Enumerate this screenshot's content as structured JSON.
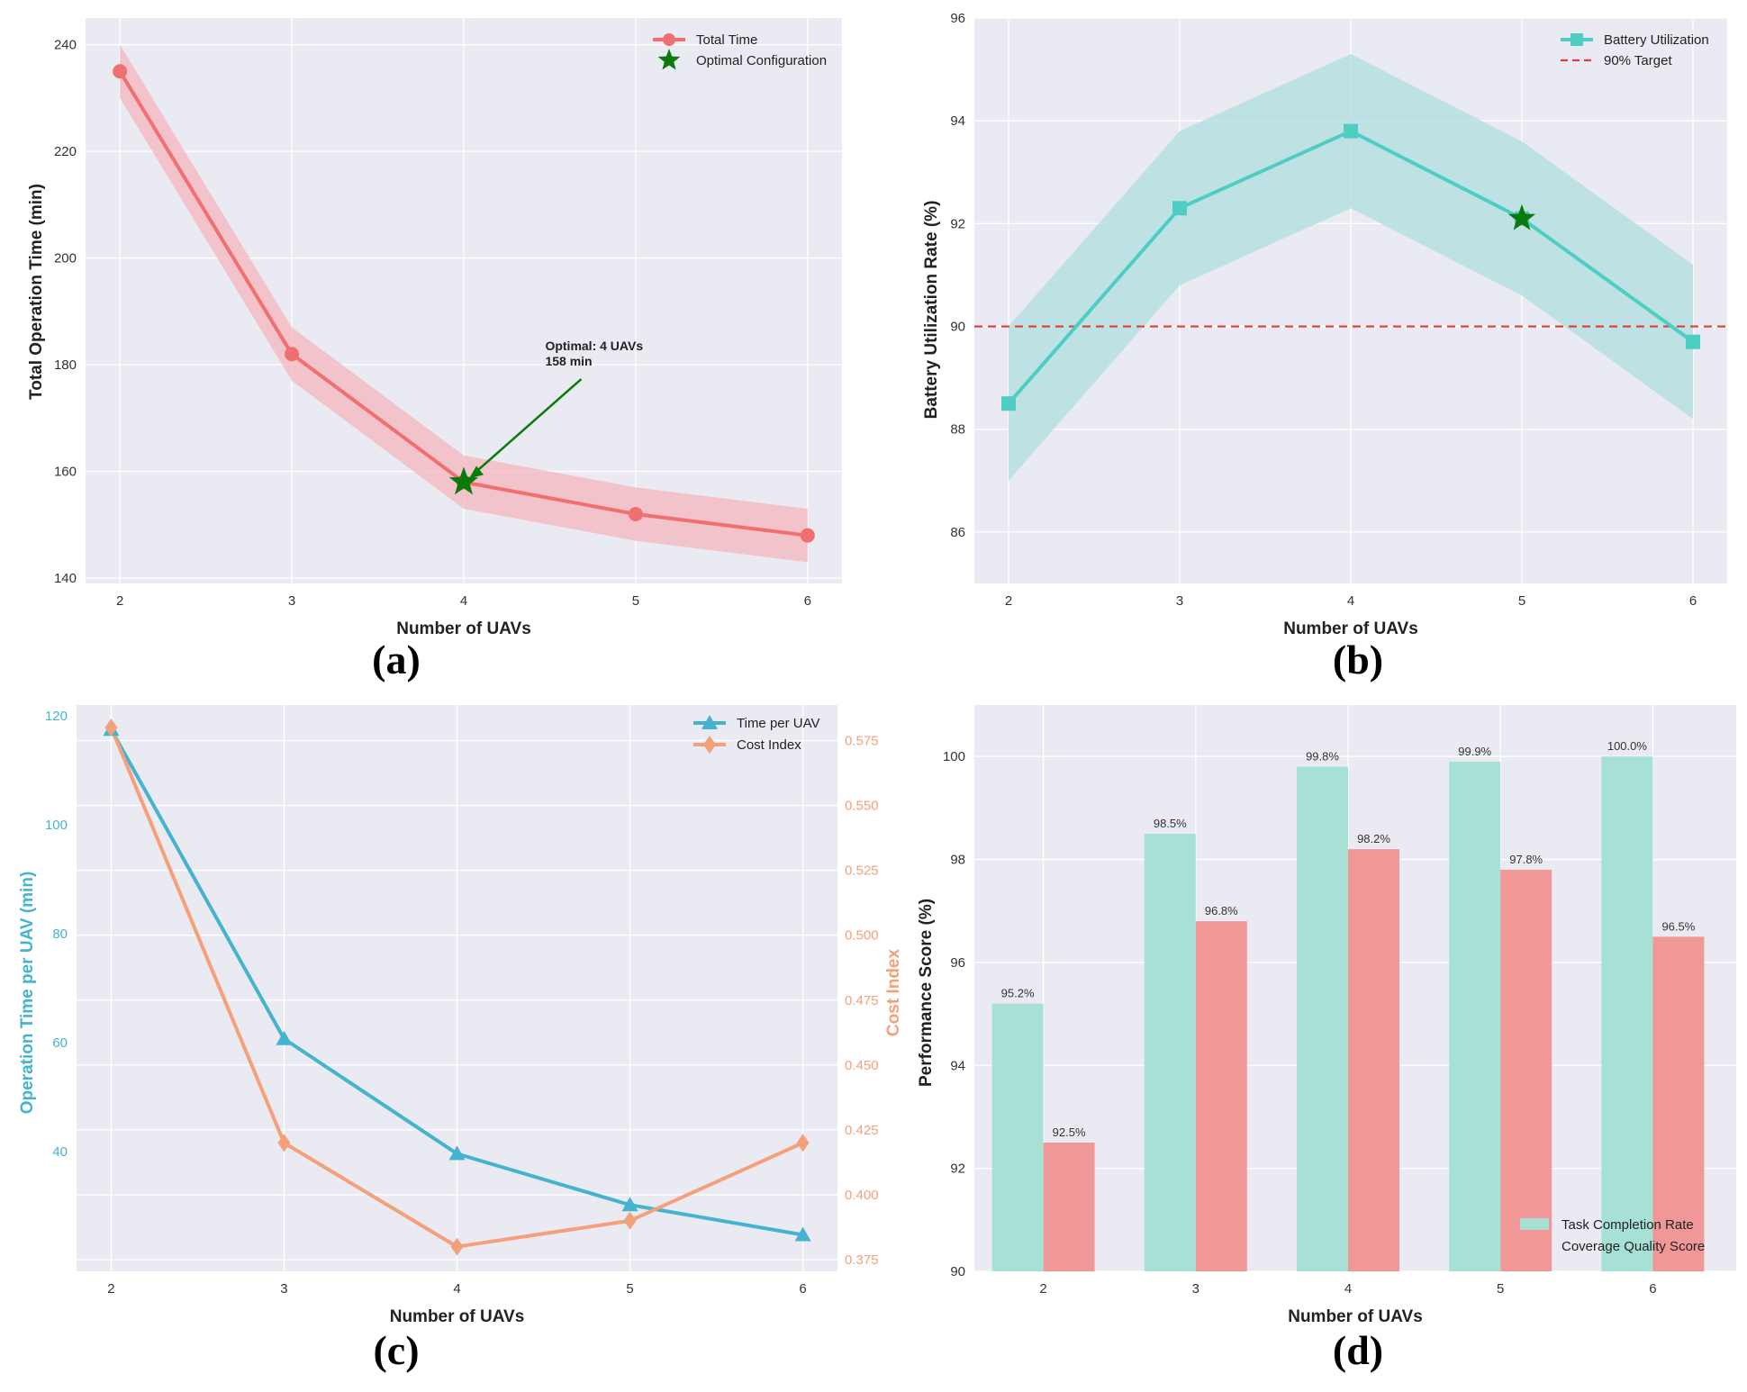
{
  "colors": {
    "plot_bg": "#eaeaf2",
    "grid": "#ffffff",
    "total_time": "#f07070",
    "total_time_band": "#f4b6be",
    "optimal_star": "#0a7a0a",
    "battery": "#4ecdc4",
    "battery_band": "#b3e0e0",
    "target_line": "#e23b3b",
    "time_per_uav": "#45b3d0",
    "cost_index": "#f4a07a",
    "task_completion": "#a7e1d6",
    "coverage_quality": "#f09898"
  },
  "panel_labels": [
    "(a)",
    "(b)",
    "(c)",
    "(d)"
  ],
  "chart_data": [
    {
      "id": "a",
      "type": "line",
      "xlabel": "Number of UAVs",
      "ylabel": "Total Operation Time (min)",
      "x": [
        2,
        3,
        4,
        5,
        6
      ],
      "xlim": [
        1.8,
        6.2
      ],
      "ylim": [
        139,
        245
      ],
      "yticks": [
        140,
        160,
        180,
        200,
        220,
        240
      ],
      "series": [
        {
          "name": "Total Time",
          "values": [
            235,
            182,
            158,
            152,
            148
          ],
          "band_lower": [
            230,
            177,
            153,
            147,
            143
          ],
          "band_upper": [
            240,
            187,
            163,
            157,
            153
          ]
        }
      ],
      "optimal": {
        "name": "Optimal Configuration",
        "x": 4,
        "y": 158
      },
      "annotation": {
        "lines": [
          "Optimal: 4 UAVs",
          "158 min"
        ],
        "text_x": 4.5,
        "text_y": 179
      },
      "legend_position": "top-right",
      "grid": true
    },
    {
      "id": "b",
      "type": "line",
      "xlabel": "Number of UAVs",
      "ylabel": "Battery Utilization Rate (%)",
      "x": [
        2,
        3,
        4,
        5,
        6
      ],
      "xlim": [
        1.8,
        6.2
      ],
      "ylim": [
        85,
        96
      ],
      "yticks": [
        86,
        88,
        90,
        92,
        94,
        96
      ],
      "series": [
        {
          "name": "Battery Utilization",
          "values": [
            88.5,
            92.3,
            93.8,
            92.1,
            89.7
          ],
          "band_lower": [
            87.0,
            90.8,
            92.3,
            90.6,
            88.2
          ],
          "band_upper": [
            90.0,
            93.8,
            95.3,
            93.6,
            91.2
          ]
        }
      ],
      "target": {
        "name": "90% Target",
        "y": 90
      },
      "optimal": {
        "x": 5,
        "y": 92.1
      },
      "legend_position": "top-right",
      "grid": true
    },
    {
      "id": "c",
      "type": "line",
      "xlabel": "Number of UAVs",
      "ylabel": "Operation Time per UAV (min)",
      "y2label": "Cost Index",
      "x": [
        2,
        3,
        4,
        5,
        6
      ],
      "xlim": [
        1.8,
        6.2
      ],
      "ylim": [
        18,
        122
      ],
      "yticks": [
        40,
        60,
        80,
        100,
        120
      ],
      "y2lim": [
        0.3705,
        0.5887
      ],
      "y2ticks": [
        "0.375",
        "0.400",
        "0.425",
        "0.450",
        "0.475",
        "0.500",
        "0.525",
        "0.550",
        "0.575"
      ],
      "series": [
        {
          "name": "Time per UAV",
          "axis": "left",
          "values": [
            117.5,
            60.7,
            39.6,
            30.2,
            24.7
          ]
        },
        {
          "name": "Cost Index",
          "axis": "right",
          "values": [
            0.58,
            0.42,
            0.38,
            0.39,
            0.42
          ]
        }
      ],
      "legend_position": "top-right",
      "grid": true
    },
    {
      "id": "d",
      "type": "bar",
      "xlabel": "Number of UAVs",
      "ylabel": "Performance Score (%)",
      "categories": [
        "2",
        "3",
        "4",
        "5",
        "6"
      ],
      "ylim": [
        90,
        101
      ],
      "yticks": [
        90,
        92,
        94,
        96,
        98,
        100
      ],
      "series": [
        {
          "name": "Task Completion Rate",
          "values": [
            95.2,
            98.5,
            99.8,
            99.9,
            100.0
          ],
          "labels": [
            "95.2%",
            "98.5%",
            "99.8%",
            "99.9%",
            "100.0%"
          ]
        },
        {
          "name": "Coverage Quality Score",
          "values": [
            92.5,
            96.8,
            98.2,
            97.8,
            96.5
          ],
          "labels": [
            "92.5%",
            "96.8%",
            "98.2%",
            "97.8%",
            "96.5%"
          ]
        }
      ],
      "legend_position": "lower-right",
      "grid": true
    }
  ]
}
